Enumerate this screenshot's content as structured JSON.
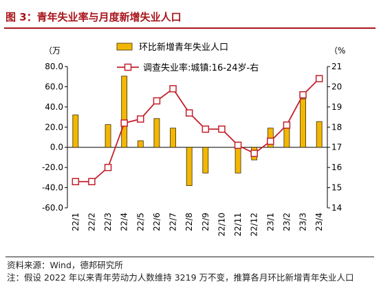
{
  "title": "图 3：青年失业率与月度新增失业人口",
  "source": "资料来源：Wind，德邦研究所",
  "note": "注：假设 2022 年以来青年劳动力人数维持 3219 万不变，推算各月环比新增青年失业人口",
  "colors": {
    "bar": "#f2b705",
    "line": "#c41e2a",
    "title": "#a8141b"
  },
  "chart_data": {
    "type": "bar+line",
    "categories": [
      "22/1",
      "22/2",
      "22/3",
      "22/4",
      "22/5",
      "22/6",
      "22/7",
      "22/8",
      "22/9",
      "22/10",
      "22/11",
      "22/12",
      "23/1",
      "23/2",
      "23/3",
      "23/4"
    ],
    "series": [
      {
        "name": "环比新增青年失业人口",
        "type": "bar",
        "axis": "left",
        "values": [
          32,
          0,
          22.5,
          70.5,
          6.5,
          28.5,
          19,
          -38,
          -25.5,
          0,
          -25.5,
          -12.5,
          19,
          19,
          48,
          25.5
        ]
      },
      {
        "name": "调查失业率:城镇:16-24岁-右",
        "type": "line",
        "axis": "right",
        "values": [
          15.3,
          15.3,
          16.0,
          18.2,
          18.4,
          19.3,
          19.9,
          18.7,
          17.9,
          17.9,
          17.1,
          16.7,
          17.3,
          18.1,
          19.6,
          20.4
        ]
      }
    ],
    "left_axis": {
      "unit": "（万",
      "ylim": [
        -60,
        80
      ],
      "ticks": [
        "80.0",
        "60.0",
        "40.0",
        "20.0",
        "0.0",
        "-20.0",
        "-40.0",
        "-60.0"
      ]
    },
    "right_axis": {
      "unit": "（%",
      "ylim": [
        14,
        21
      ],
      "ticks": [
        "21",
        "20",
        "19",
        "18",
        "17",
        "16",
        "15",
        "14"
      ]
    },
    "legend_position": "top"
  }
}
